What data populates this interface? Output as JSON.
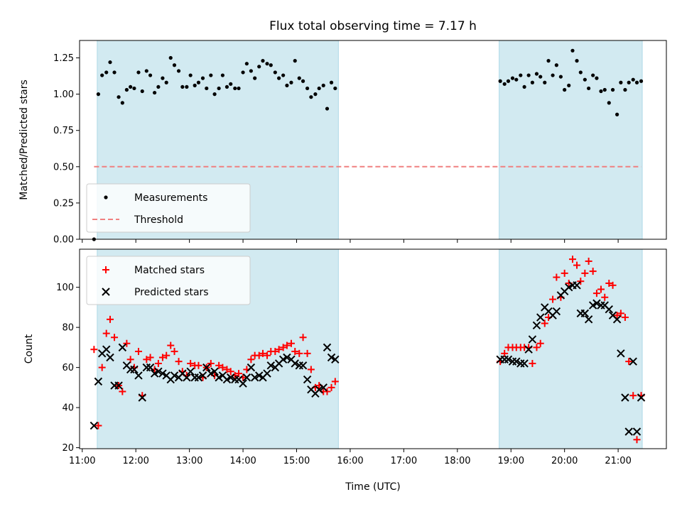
{
  "title": "Flux total observing time = 7.17 h",
  "colors": {
    "shade": "#add8e6",
    "measurement": "#000000",
    "threshold": "#f08080",
    "matched": "#ff0000",
    "predicted": "#000000"
  },
  "chart_data": [
    {
      "type": "scatter",
      "name": "ratio-panel",
      "ylabel": "Matched/Predicted stars",
      "xlabel": "",
      "xlim": [
        10.95,
        21.9
      ],
      "ylim": [
        0,
        1.37
      ],
      "yticks": [
        0.0,
        0.25,
        0.5,
        0.75,
        1.0,
        1.25
      ],
      "ytick_labels": [
        "0.00",
        "0.25",
        "0.50",
        "0.75",
        "1.00",
        "1.25"
      ],
      "xticks": [
        11,
        12,
        13,
        14,
        15,
        16,
        17,
        18,
        19,
        20,
        21
      ],
      "xtick_labels_shown": false,
      "shaded_spans": [
        [
          11.28,
          15.78
        ],
        [
          18.78,
          21.45
        ]
      ],
      "legend": {
        "placement": "lower-left",
        "entries": [
          "Measurements",
          "Threshold"
        ]
      },
      "series": [
        {
          "name": "Measurements",
          "marker": "dot",
          "x": [
            11.22,
            11.3,
            11.37,
            11.45,
            11.52,
            11.6,
            11.68,
            11.75,
            11.83,
            11.9,
            11.97,
            12.05,
            12.12,
            12.2,
            12.27,
            12.35,
            12.42,
            12.5,
            12.57,
            12.65,
            12.72,
            12.8,
            12.87,
            12.95,
            13.02,
            13.1,
            13.17,
            13.25,
            13.32,
            13.4,
            13.47,
            13.55,
            13.62,
            13.7,
            13.77,
            13.85,
            13.92,
            14.0,
            14.07,
            14.15,
            14.22,
            14.3,
            14.37,
            14.45,
            14.52,
            14.6,
            14.67,
            14.75,
            14.82,
            14.9,
            14.97,
            15.05,
            15.12,
            15.2,
            15.27,
            15.35,
            15.42,
            15.5,
            15.57,
            15.65,
            15.72,
            18.8,
            18.88,
            18.95,
            19.03,
            19.1,
            19.18,
            19.25,
            19.33,
            19.4,
            19.48,
            19.55,
            19.63,
            19.7,
            19.78,
            19.85,
            19.93,
            20.0,
            20.08,
            20.15,
            20.23,
            20.3,
            20.38,
            20.45,
            20.53,
            20.6,
            20.68,
            20.75,
            20.83,
            20.9,
            20.98,
            21.05,
            21.13,
            21.2,
            21.28,
            21.35,
            21.43
          ],
          "y": [
            0.0,
            1.0,
            1.13,
            1.15,
            1.22,
            1.15,
            0.98,
            0.94,
            1.03,
            1.05,
            1.04,
            1.15,
            1.02,
            1.16,
            1.13,
            1.01,
            1.05,
            1.11,
            1.08,
            1.25,
            1.2,
            1.16,
            1.05,
            1.05,
            1.13,
            1.06,
            1.08,
            1.11,
            1.04,
            1.13,
            1.0,
            1.04,
            1.13,
            1.05,
            1.07,
            1.04,
            1.04,
            1.15,
            1.21,
            1.16,
            1.11,
            1.19,
            1.23,
            1.21,
            1.2,
            1.15,
            1.11,
            1.13,
            1.06,
            1.08,
            1.23,
            1.11,
            1.09,
            1.04,
            0.98,
            1.0,
            1.04,
            1.06,
            0.9,
            1.08,
            1.04,
            1.09,
            1.07,
            1.09,
            1.11,
            1.1,
            1.13,
            1.05,
            1.13,
            1.08,
            1.14,
            1.12,
            1.08,
            1.23,
            1.13,
            1.2,
            1.12,
            1.03,
            1.06,
            1.3,
            1.23,
            1.15,
            1.1,
            1.04,
            1.13,
            1.11,
            1.02,
            1.03,
            0.94,
            1.03,
            0.86,
            1.08,
            1.03,
            1.08,
            1.1,
            1.08,
            1.09
          ]
        },
        {
          "name": "Threshold",
          "marker": "dashed-line",
          "x": [
            11.22,
            21.43
          ],
          "y": [
            0.5,
            0.5
          ]
        }
      ]
    },
    {
      "type": "scatter",
      "name": "count-panel",
      "ylabel": "Count",
      "xlabel": "Time (UTC)",
      "xlim": [
        10.95,
        21.9
      ],
      "ylim": [
        19.5,
        119
      ],
      "yticks": [
        20,
        40,
        60,
        80,
        100
      ],
      "ytick_labels": [
        "20",
        "40",
        "60",
        "80",
        "100"
      ],
      "xticks": [
        11,
        12,
        13,
        14,
        15,
        16,
        17,
        18,
        19,
        20,
        21
      ],
      "xtick_labels": [
        "11:00",
        "12:00",
        "13:00",
        "14:00",
        "15:00",
        "16:00",
        "17:00",
        "18:00",
        "19:00",
        "20:00",
        "21:00"
      ],
      "shaded_spans": [
        [
          11.28,
          15.78
        ],
        [
          18.78,
          21.45
        ]
      ],
      "legend": {
        "placement": "top-left",
        "entries": [
          "Matched stars",
          "Predicted stars"
        ]
      },
      "series": [
        {
          "name": "Matched stars",
          "marker": "plus",
          "x": [
            11.22,
            11.3,
            11.37,
            11.45,
            11.52,
            11.6,
            11.68,
            11.75,
            11.83,
            11.9,
            11.97,
            12.05,
            12.12,
            12.2,
            12.27,
            12.35,
            12.42,
            12.5,
            12.57,
            12.65,
            12.72,
            12.8,
            12.87,
            12.95,
            13.02,
            13.1,
            13.17,
            13.25,
            13.32,
            13.4,
            13.47,
            13.55,
            13.62,
            13.7,
            13.77,
            13.85,
            13.92,
            14.0,
            14.07,
            14.15,
            14.22,
            14.3,
            14.37,
            14.45,
            14.52,
            14.6,
            14.67,
            14.75,
            14.82,
            14.9,
            14.97,
            15.05,
            15.12,
            15.2,
            15.27,
            15.35,
            15.42,
            15.5,
            15.57,
            15.65,
            15.72,
            18.8,
            18.88,
            18.95,
            19.03,
            19.1,
            19.18,
            19.25,
            19.33,
            19.4,
            19.48,
            19.55,
            19.63,
            19.7,
            19.78,
            19.85,
            19.93,
            20.0,
            20.08,
            20.15,
            20.23,
            20.3,
            20.38,
            20.45,
            20.53,
            20.6,
            20.68,
            20.75,
            20.83,
            20.9,
            20.98,
            21.05,
            21.13,
            21.2,
            21.28,
            21.35,
            21.43
          ],
          "y": [
            69,
            31,
            60,
            77,
            84,
            75,
            51,
            48,
            72,
            64,
            60,
            68,
            46,
            64,
            65,
            59,
            62,
            65,
            66,
            71,
            68,
            63,
            58,
            56,
            62,
            61,
            61,
            55,
            60,
            62,
            56,
            61,
            60,
            59,
            58,
            56,
            57,
            55,
            59,
            64,
            66,
            66,
            67,
            66,
            68,
            68,
            69,
            70,
            71,
            72,
            68,
            67,
            75,
            67,
            59,
            50,
            51,
            48,
            48,
            50,
            53,
            63,
            67,
            70,
            70,
            70,
            70,
            70,
            70,
            62,
            70,
            72,
            82,
            85,
            94,
            105,
            95,
            107,
            102,
            114,
            111,
            103,
            107,
            113,
            108,
            97,
            99,
            95,
            102,
            101,
            86,
            87,
            85,
            63,
            46,
            24,
            46
          ],
          "x_skip_note": ""
        },
        {
          "name": "Predicted stars",
          "marker": "x",
          "x": [
            11.22,
            11.3,
            11.37,
            11.45,
            11.52,
            11.6,
            11.68,
            11.75,
            11.83,
            11.9,
            11.97,
            12.05,
            12.12,
            12.2,
            12.27,
            12.35,
            12.42,
            12.5,
            12.57,
            12.65,
            12.72,
            12.8,
            12.87,
            12.95,
            13.02,
            13.1,
            13.17,
            13.25,
            13.32,
            13.4,
            13.47,
            13.55,
            13.62,
            13.7,
            13.77,
            13.85,
            13.92,
            14.0,
            14.07,
            14.15,
            14.22,
            14.3,
            14.37,
            14.45,
            14.52,
            14.6,
            14.67,
            14.75,
            14.82,
            14.9,
            14.97,
            15.05,
            15.12,
            15.2,
            15.27,
            15.35,
            15.42,
            15.5,
            15.57,
            15.65,
            15.72,
            18.8,
            18.88,
            18.95,
            19.03,
            19.1,
            19.18,
            19.25,
            19.33,
            19.4,
            19.48,
            19.55,
            19.63,
            19.7,
            19.78,
            19.85,
            19.93,
            20.0,
            20.08,
            20.15,
            20.23,
            20.3,
            20.38,
            20.45,
            20.53,
            20.6,
            20.68,
            20.75,
            20.83,
            20.9,
            20.98,
            21.05,
            21.13,
            21.2,
            21.28,
            21.35,
            21.43
          ],
          "y": [
            31,
            53,
            67,
            69,
            65,
            51,
            51,
            70,
            61,
            59,
            59,
            56,
            45,
            60,
            60,
            57,
            58,
            57,
            56,
            54,
            56,
            55,
            57,
            55,
            58,
            55,
            55,
            56,
            60,
            57,
            58,
            55,
            56,
            54,
            55,
            54,
            54,
            52,
            55,
            60,
            55,
            56,
            55,
            57,
            61,
            60,
            62,
            64,
            65,
            64,
            62,
            61,
            61,
            54,
            49,
            47,
            49,
            50,
            70,
            65,
            64,
            64,
            64,
            64,
            63,
            63,
            62,
            62,
            69,
            74,
            81,
            85,
            90,
            88,
            86,
            88,
            96,
            98,
            100,
            101,
            101,
            87,
            87,
            84,
            91,
            92,
            91,
            91,
            89,
            86,
            84,
            67,
            45,
            28,
            63,
            28,
            45
          ]
        }
      ]
    }
  ]
}
